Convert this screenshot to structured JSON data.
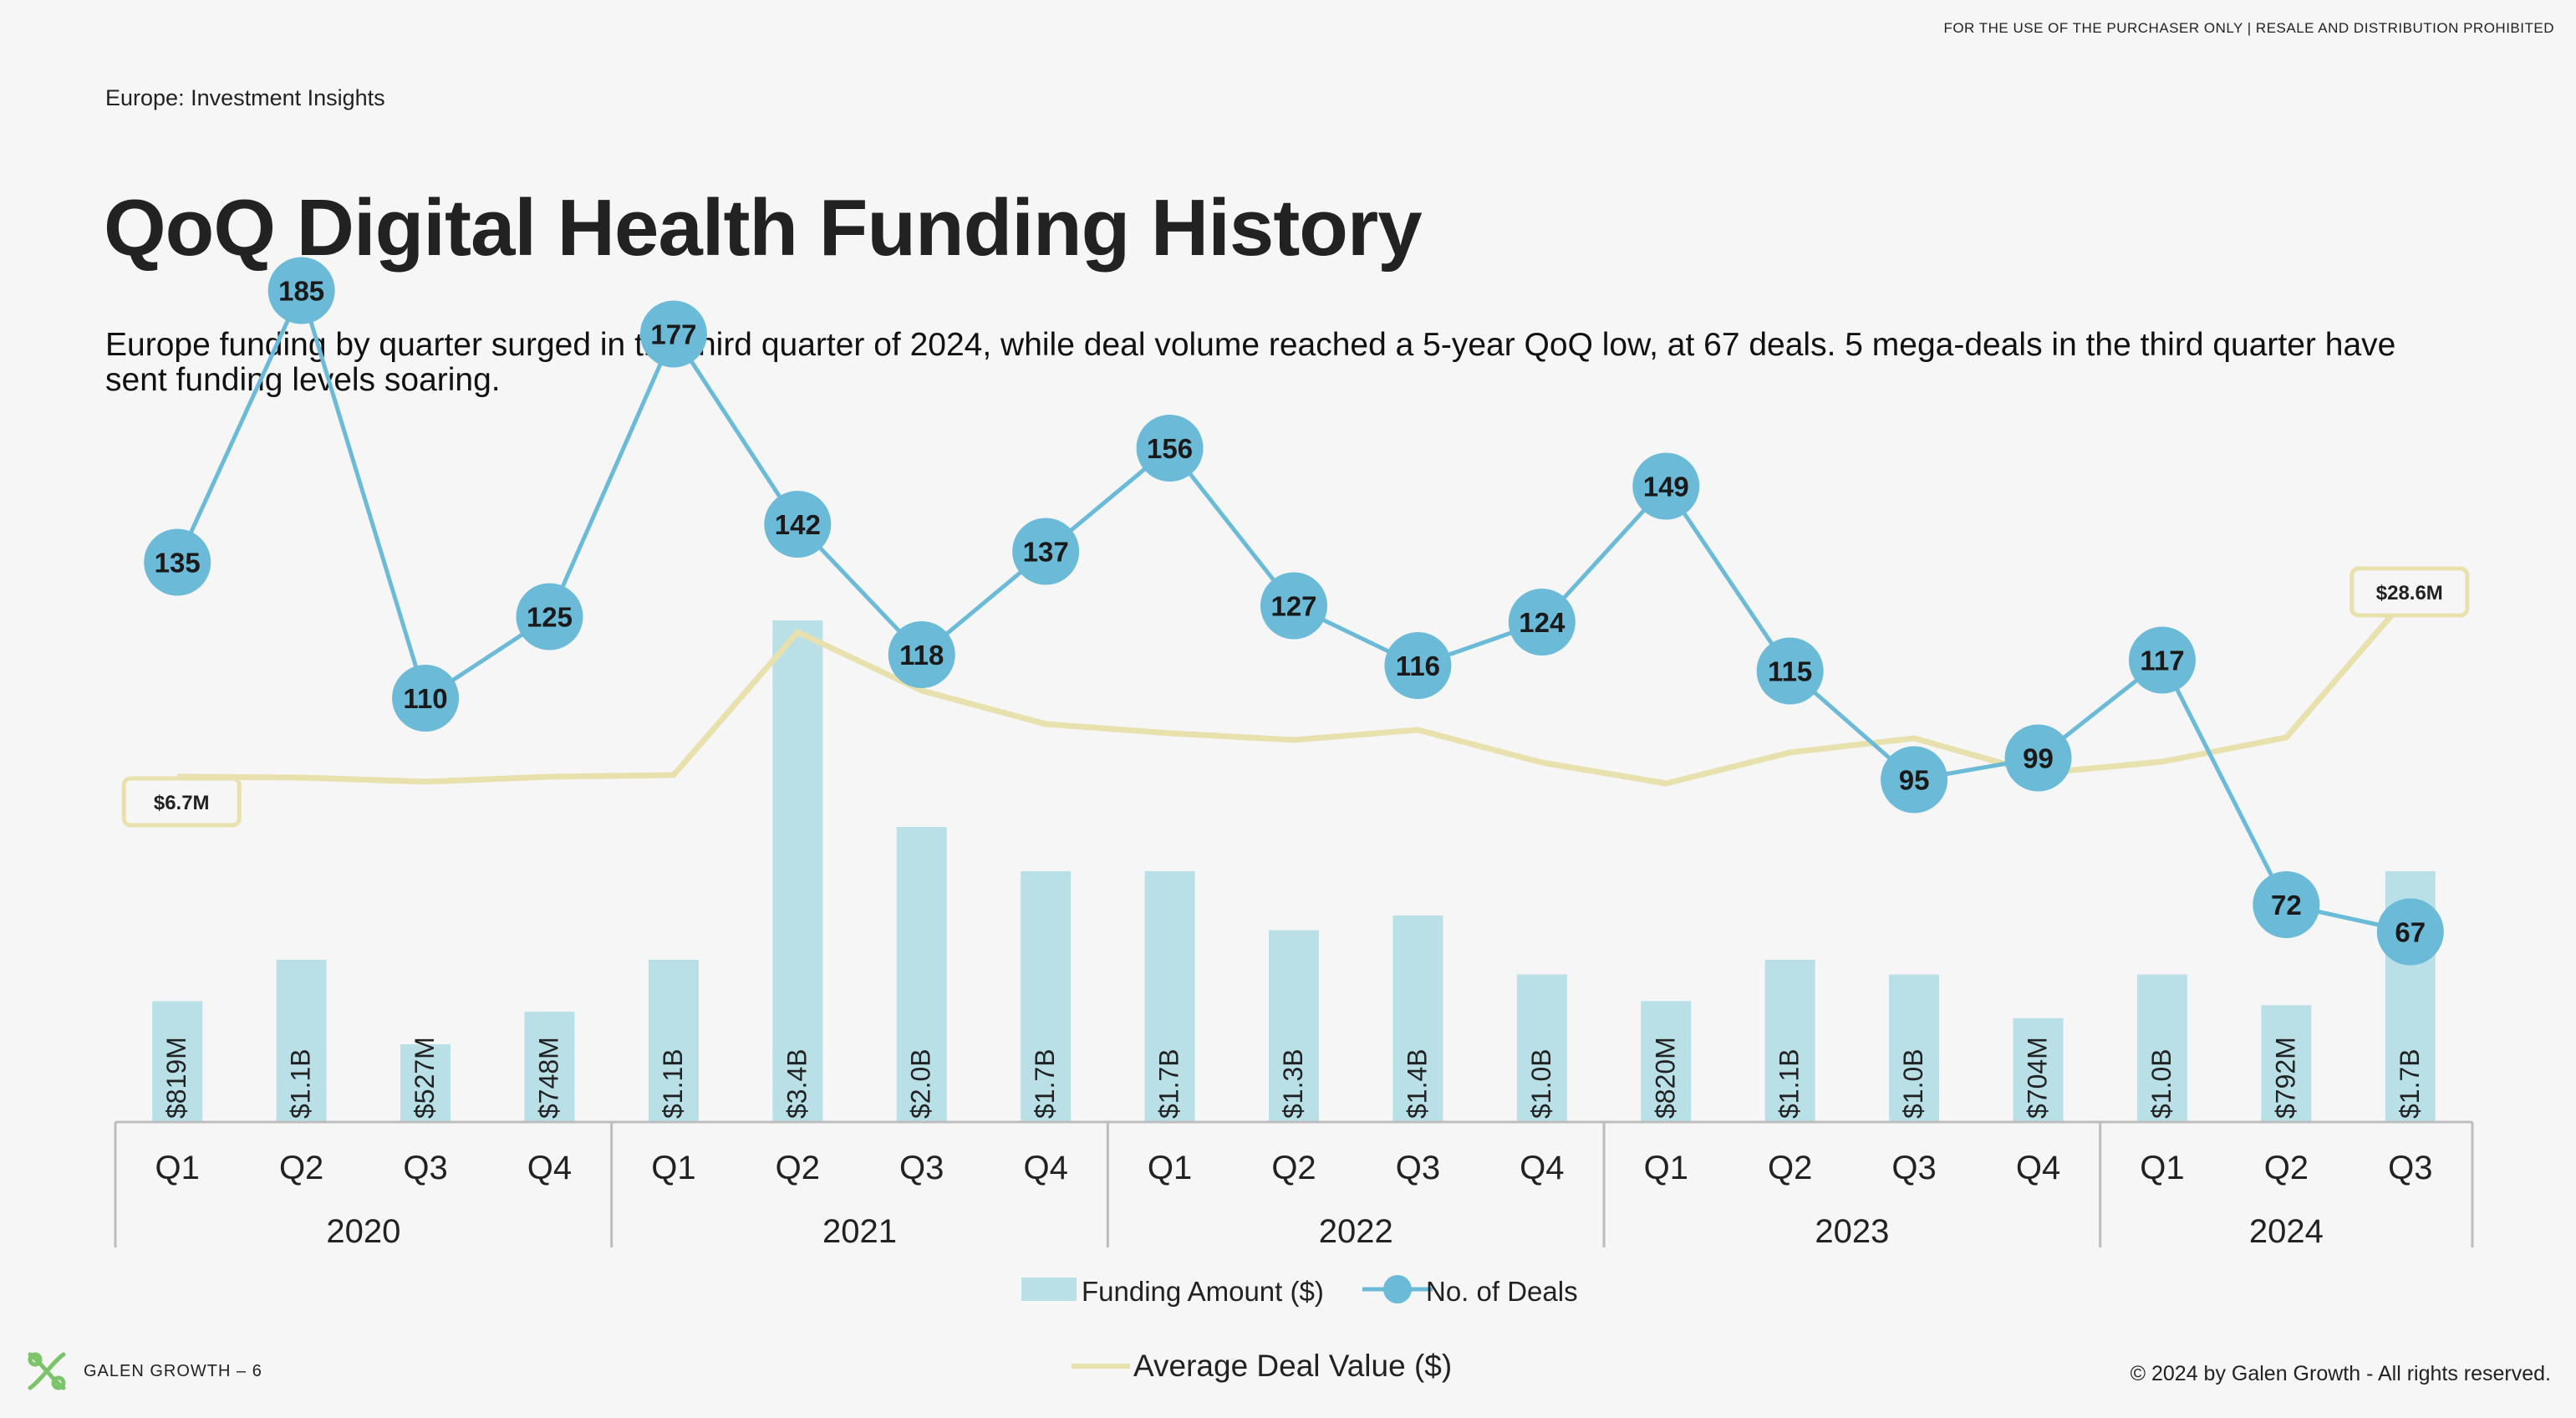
{
  "header": {
    "disclaimer": "FOR THE USE OF THE PURCHASER ONLY | RESALE AND DISTRIBUTION PROHIBITED",
    "section": "Europe: Investment Insights",
    "title": "QoQ Digital Health Funding History",
    "subtitle": "Europe funding by quarter surged in the third quarter of 2024, while deal volume reached a 5-year QoQ low, at 67 deals. 5 mega-deals in the third quarter have sent funding levels soaring."
  },
  "footer": {
    "brand": "GALEN GROWTH – 6",
    "copyright": "© 2024 by Galen Growth  - All rights reserved."
  },
  "chart_data": {
    "type": "bar",
    "categories": [
      "Q1",
      "Q2",
      "Q3",
      "Q4",
      "Q1",
      "Q2",
      "Q3",
      "Q4",
      "Q1",
      "Q2",
      "Q3",
      "Q4",
      "Q1",
      "Q2",
      "Q3",
      "Q4",
      "Q1",
      "Q2",
      "Q3"
    ],
    "groups": [
      {
        "label": "2020",
        "count": 4
      },
      {
        "label": "2021",
        "count": 4
      },
      {
        "label": "2022",
        "count": 4
      },
      {
        "label": "2023",
        "count": 4
      },
      {
        "label": "2024",
        "count": 3
      }
    ],
    "series": [
      {
        "name": "Funding Amount ($)",
        "type": "bar",
        "color": "#b9dfe7",
        "values": [
          0.819,
          1.1,
          0.527,
          0.748,
          1.1,
          3.4,
          2.0,
          1.7,
          1.7,
          1.3,
          1.4,
          1.0,
          0.82,
          1.1,
          1.0,
          0.704,
          1.0,
          0.792,
          1.7
        ],
        "labels": [
          "$819M",
          "$1.1B",
          "$527M",
          "$748M",
          "$1.1B",
          "$3.4B",
          "$2.0B",
          "$1.7B",
          "$1.7B",
          "$1.3B",
          "$1.4B",
          "$1.0B",
          "$820M",
          "$1.1B",
          "$1.0B",
          "$704M",
          "$1.0B",
          "$792M",
          "$1.7B"
        ]
      },
      {
        "name": "No. of Deals",
        "type": "line-marker",
        "color": "#6bbbd8",
        "values": [
          135,
          185,
          110,
          125,
          177,
          142,
          118,
          137,
          156,
          127,
          116,
          124,
          149,
          115,
          95,
          99,
          117,
          72,
          67
        ]
      },
      {
        "name": "Average Deal Value ($)",
        "type": "line",
        "color": "#e8e0ad",
        "values": [
          6.7,
          6.6,
          6.1,
          6.7,
          6.9,
          24.0,
          17.0,
          13.0,
          11.9,
          11.1,
          12.3,
          8.4,
          5.9,
          9.6,
          11.3,
          7.1,
          8.5,
          11.4,
          28.6
        ],
        "point_labels": {
          "0": "$6.7M",
          "18": "$28.6M"
        }
      }
    ]
  }
}
